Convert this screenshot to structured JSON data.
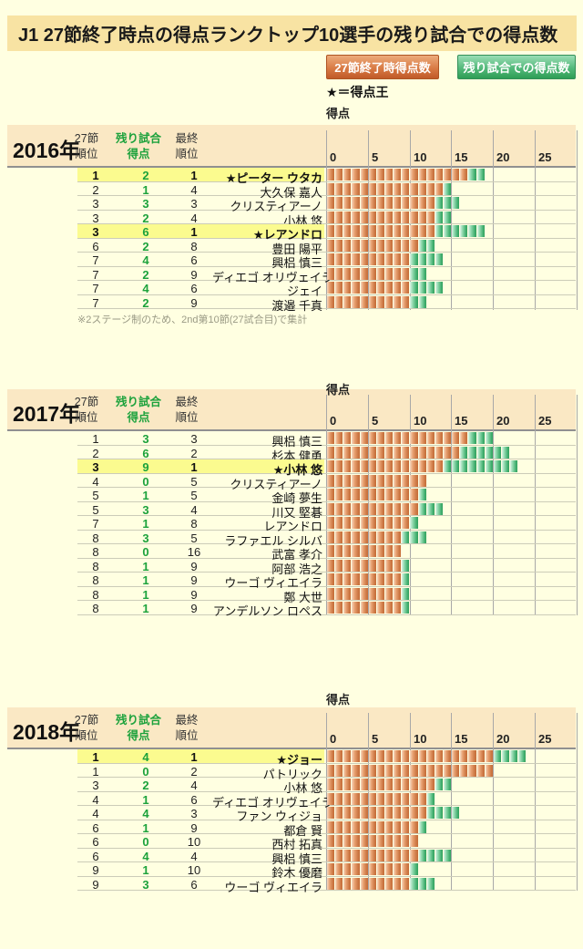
{
  "title": "J1 27節終了時点の得点ランクトップ10選手の残り試合での得点数",
  "legend": {
    "at27_label": "27節終了時得点数",
    "remaining_label": "残り試合での得点数",
    "star_note": "★＝得点王"
  },
  "axis": {
    "label": "得点",
    "ticks": [
      0,
      5,
      10,
      15,
      20,
      25
    ],
    "xlim": [
      0,
      30
    ]
  },
  "columns": {
    "rank27_line1": "27節",
    "rank27_line2": "順位",
    "remaining_line1": "残り試合",
    "remaining_line2": "得点",
    "final_line1": "最終",
    "final_line2": "順位"
  },
  "colors": {
    "page_bg": "#FFFFE1",
    "title_band": "#F8E3A3",
    "header_band": "#FAE8C4",
    "highlight_yellow": "#FBFB8F",
    "green_text": "#1CA23C",
    "bar_orange": "#CE7B47",
    "bar_green": "#3AAA67",
    "gridline": "#A8A8A8"
  },
  "sections": [
    {
      "year": "2016年",
      "footnote": "※2ステージ制のため、2nd第10節(27試合目)で集計",
      "rows": [
        {
          "rank27": "1",
          "remaining": 2,
          "final": "1",
          "name": "★ピーター ウタカ",
          "highlight": true,
          "goals27": 17
        },
        {
          "rank27": "2",
          "remaining": 1,
          "final": "4",
          "name": "大久保 嘉人",
          "highlight": false,
          "goals27": 14
        },
        {
          "rank27": "3",
          "remaining": 3,
          "final": "3",
          "name": "クリスティアーノ",
          "highlight": false,
          "goals27": 13
        },
        {
          "rank27": "3",
          "remaining": 2,
          "final": "4",
          "name": "小林 悠",
          "highlight": false,
          "goals27": 13
        },
        {
          "rank27": "3",
          "remaining": 6,
          "final": "1",
          "name": "★レアンドロ",
          "highlight": true,
          "goals27": 13
        },
        {
          "rank27": "6",
          "remaining": 2,
          "final": "8",
          "name": "豊田 陽平",
          "highlight": false,
          "goals27": 11
        },
        {
          "rank27": "7",
          "remaining": 4,
          "final": "6",
          "name": "興梠 慎三",
          "highlight": false,
          "goals27": 10
        },
        {
          "rank27": "7",
          "remaining": 2,
          "final": "9",
          "name": "ディエゴ オリヴェイラ",
          "highlight": false,
          "goals27": 10
        },
        {
          "rank27": "7",
          "remaining": 4,
          "final": "6",
          "name": "ジェイ",
          "highlight": false,
          "goals27": 10
        },
        {
          "rank27": "7",
          "remaining": 2,
          "final": "9",
          "name": "渡邉 千真",
          "highlight": false,
          "goals27": 10
        }
      ]
    },
    {
      "year": "2017年",
      "footnote": "",
      "rows": [
        {
          "rank27": "1",
          "remaining": 3,
          "final": "3",
          "name": "興梠 慎三",
          "highlight": false,
          "goals27": 17
        },
        {
          "rank27": "2",
          "remaining": 6,
          "final": "2",
          "name": "杉本 健勇",
          "highlight": false,
          "goals27": 16
        },
        {
          "rank27": "3",
          "remaining": 9,
          "final": "1",
          "name": "★小林 悠",
          "highlight": true,
          "goals27": 14
        },
        {
          "rank27": "4",
          "remaining": 0,
          "final": "5",
          "name": "クリスティアーノ",
          "highlight": false,
          "goals27": 12
        },
        {
          "rank27": "5",
          "remaining": 1,
          "final": "5",
          "name": "金崎 夢生",
          "highlight": false,
          "goals27": 11
        },
        {
          "rank27": "5",
          "remaining": 3,
          "final": "4",
          "name": "川又 堅碁",
          "highlight": false,
          "goals27": 11
        },
        {
          "rank27": "7",
          "remaining": 1,
          "final": "8",
          "name": "レアンドロ",
          "highlight": false,
          "goals27": 10
        },
        {
          "rank27": "8",
          "remaining": 3,
          "final": "5",
          "name": "ラファエル シルバ",
          "highlight": false,
          "goals27": 9
        },
        {
          "rank27": "8",
          "remaining": 0,
          "final": "16",
          "name": "武富 孝介",
          "highlight": false,
          "goals27": 9
        },
        {
          "rank27": "8",
          "remaining": 1,
          "final": "9",
          "name": "阿部 浩之",
          "highlight": false,
          "goals27": 9
        },
        {
          "rank27": "8",
          "remaining": 1,
          "final": "9",
          "name": "ウーゴ ヴィエイラ",
          "highlight": false,
          "goals27": 9
        },
        {
          "rank27": "8",
          "remaining": 1,
          "final": "9",
          "name": "鄭 大世",
          "highlight": false,
          "goals27": 9
        },
        {
          "rank27": "8",
          "remaining": 1,
          "final": "9",
          "name": "アンデルソン ロペス",
          "highlight": false,
          "goals27": 9
        }
      ]
    },
    {
      "year": "2018年",
      "footnote": "",
      "rows": [
        {
          "rank27": "1",
          "remaining": 4,
          "final": "1",
          "name": "★ジョー",
          "highlight": true,
          "goals27": 20
        },
        {
          "rank27": "1",
          "remaining": 0,
          "final": "2",
          "name": "パトリック",
          "highlight": false,
          "goals27": 20
        },
        {
          "rank27": "3",
          "remaining": 2,
          "final": "4",
          "name": "小林 悠",
          "highlight": false,
          "goals27": 13
        },
        {
          "rank27": "4",
          "remaining": 1,
          "final": "6",
          "name": "ディエゴ オリヴェイラ",
          "highlight": false,
          "goals27": 12
        },
        {
          "rank27": "4",
          "remaining": 4,
          "final": "3",
          "name": "ファン ウィジョ",
          "highlight": false,
          "goals27": 12
        },
        {
          "rank27": "6",
          "remaining": 1,
          "final": "9",
          "name": "都倉 賢",
          "highlight": false,
          "goals27": 11
        },
        {
          "rank27": "6",
          "remaining": 0,
          "final": "10",
          "name": "西村 拓真",
          "highlight": false,
          "goals27": 11
        },
        {
          "rank27": "6",
          "remaining": 4,
          "final": "4",
          "name": "興梠 慎三",
          "highlight": false,
          "goals27": 11
        },
        {
          "rank27": "9",
          "remaining": 1,
          "final": "10",
          "name": "鈴木 優磨",
          "highlight": false,
          "goals27": 10
        },
        {
          "rank27": "9",
          "remaining": 3,
          "final": "6",
          "name": "ウーゴ ヴィエイラ",
          "highlight": false,
          "goals27": 10
        }
      ]
    }
  ],
  "chart_data": [
    {
      "type": "bar",
      "orientation": "horizontal",
      "stacked": true,
      "title": "2016年",
      "xlabel": "得点",
      "xlim": [
        0,
        30
      ],
      "xticks": [
        0,
        5,
        10,
        15,
        20,
        25
      ],
      "categories": [
        "★ピーター ウタカ",
        "大久保 嘉人",
        "クリスティアーノ",
        "小林 悠",
        "★レアンドロ",
        "豊田 陽平",
        "興梠 慎三",
        "ディエゴ オリヴェイラ",
        "ジェイ",
        "渡邉 千真"
      ],
      "series": [
        {
          "name": "27節終了時得点数",
          "color": "#CE7B47",
          "values": [
            17,
            14,
            13,
            13,
            13,
            11,
            10,
            10,
            10,
            10
          ]
        },
        {
          "name": "残り試合での得点数",
          "color": "#3AAA67",
          "values": [
            2,
            1,
            3,
            2,
            6,
            2,
            4,
            2,
            4,
            2
          ]
        }
      ]
    },
    {
      "type": "bar",
      "orientation": "horizontal",
      "stacked": true,
      "title": "2017年",
      "xlabel": "得点",
      "xlim": [
        0,
        30
      ],
      "xticks": [
        0,
        5,
        10,
        15,
        20,
        25
      ],
      "categories": [
        "興梠 慎三",
        "杉本 健勇",
        "★小林 悠",
        "クリスティアーノ",
        "金崎 夢生",
        "川又 堅碁",
        "レアンドロ",
        "ラファエル シルバ",
        "武富 孝介",
        "阿部 浩之",
        "ウーゴ ヴィエイラ",
        "鄭 大世",
        "アンデルソン ロペス"
      ],
      "series": [
        {
          "name": "27節終了時得点数",
          "color": "#CE7B47",
          "values": [
            17,
            16,
            14,
            12,
            11,
            11,
            10,
            9,
            9,
            9,
            9,
            9,
            9
          ]
        },
        {
          "name": "残り試合での得点数",
          "color": "#3AAA67",
          "values": [
            3,
            6,
            9,
            0,
            1,
            3,
            1,
            3,
            0,
            1,
            1,
            1,
            1
          ]
        }
      ]
    },
    {
      "type": "bar",
      "orientation": "horizontal",
      "stacked": true,
      "title": "2018年",
      "xlabel": "得点",
      "xlim": [
        0,
        30
      ],
      "xticks": [
        0,
        5,
        10,
        15,
        20,
        25
      ],
      "categories": [
        "★ジョー",
        "パトリック",
        "小林 悠",
        "ディエゴ オリヴェイラ",
        "ファン ウィジョ",
        "都倉 賢",
        "西村 拓真",
        "興梠 慎三",
        "鈴木 優磨",
        "ウーゴ ヴィエイラ"
      ],
      "series": [
        {
          "name": "27節終了時得点数",
          "color": "#CE7B47",
          "values": [
            20,
            20,
            13,
            12,
            12,
            11,
            11,
            11,
            10,
            10
          ]
        },
        {
          "name": "残り試合での得点数",
          "color": "#3AAA67",
          "values": [
            4,
            0,
            2,
            1,
            4,
            1,
            0,
            4,
            1,
            3
          ]
        }
      ]
    }
  ]
}
